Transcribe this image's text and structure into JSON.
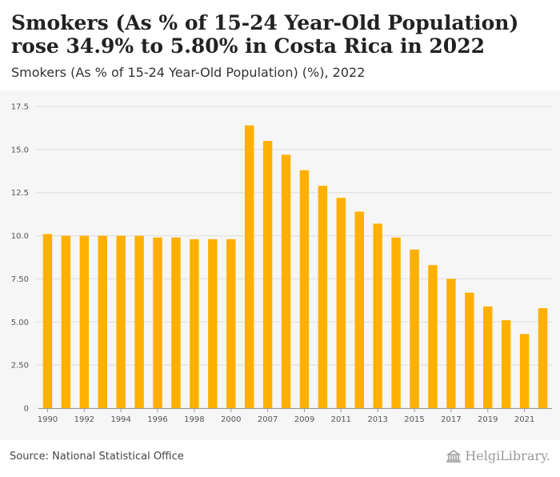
{
  "title": "Smokers (As % of 15-24 Year-Old Population) rose 34.9% to 5.80% in Costa Rica in 2022",
  "subtitle": "Smokers (As % of 15-24 Year-Old Population) (%), 2022",
  "source": "Source: National Statistical Office",
  "brand": "HelgiLibrary.",
  "colors": {
    "bar": "#FFB000",
    "grid": "#dddddd",
    "background": "#f6f6f6"
  },
  "chart_data": {
    "type": "bar",
    "categories": [
      "1990",
      "1991",
      "1992",
      "1993",
      "1994",
      "1995",
      "1996",
      "1997",
      "1998",
      "1999",
      "2000",
      "2006",
      "2007",
      "2008",
      "2009",
      "2010",
      "2011",
      "2012",
      "2013",
      "2014",
      "2015",
      "2016",
      "2017",
      "2018",
      "2019",
      "2020",
      "2021",
      "2022"
    ],
    "values": [
      10.1,
      10.0,
      10.0,
      10.0,
      10.0,
      10.0,
      9.9,
      9.9,
      9.8,
      9.8,
      9.8,
      16.4,
      15.5,
      14.7,
      13.8,
      12.9,
      12.2,
      11.4,
      10.7,
      9.9,
      9.2,
      8.3,
      7.5,
      6.7,
      5.9,
      5.1,
      4.3,
      5.8
    ],
    "x_tick_labels": [
      "1990",
      "1992",
      "1994",
      "1996",
      "1998",
      "2000",
      "2007",
      "2009",
      "2011",
      "2013",
      "2015",
      "2017",
      "2019",
      "2021"
    ],
    "y_tick_labels": [
      "0",
      "2.50",
      "5.00",
      "7.50",
      "10.0",
      "12.5",
      "15.0",
      "17.5"
    ],
    "ylim": [
      0,
      17.5
    ],
    "grid": true,
    "legend": "none"
  }
}
